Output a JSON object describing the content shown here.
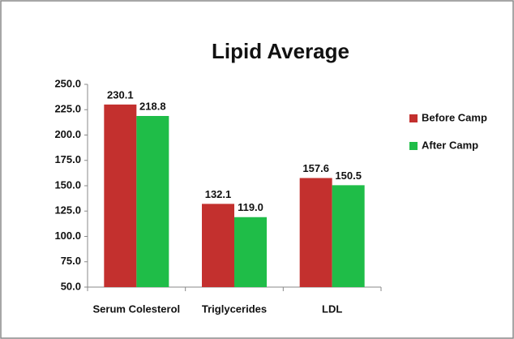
{
  "chart_data": {
    "type": "bar",
    "title": "Lipid Average",
    "categories": [
      "Serum Colesterol",
      "Triglycerides",
      "LDL"
    ],
    "series": [
      {
        "name": "Before Camp",
        "color": "#c3302e",
        "values": [
          230.1,
          132.1,
          157.6
        ],
        "value_labels": [
          "230.1",
          "132.1",
          "157.6"
        ]
      },
      {
        "name": "After Camp",
        "color": "#1fbd48",
        "values": [
          218.8,
          119.0,
          150.5
        ],
        "value_labels": [
          "218.8",
          "119.0",
          "150.5"
        ]
      }
    ],
    "ylim": [
      50,
      250
    ],
    "yticks": [
      {
        "value": 50,
        "label": "50.0"
      },
      {
        "value": 75,
        "label": "75.0"
      },
      {
        "value": 100,
        "label": "100.0"
      },
      {
        "value": 125,
        "label": "125.0"
      },
      {
        "value": 150,
        "label": "150.0"
      },
      {
        "value": 175,
        "label": "175.0"
      },
      {
        "value": 200,
        "label": "200.0"
      },
      {
        "value": 225,
        "label": "225.0"
      },
      {
        "value": 250,
        "label": "250.0"
      }
    ],
    "grid": false,
    "legend": "right"
  }
}
